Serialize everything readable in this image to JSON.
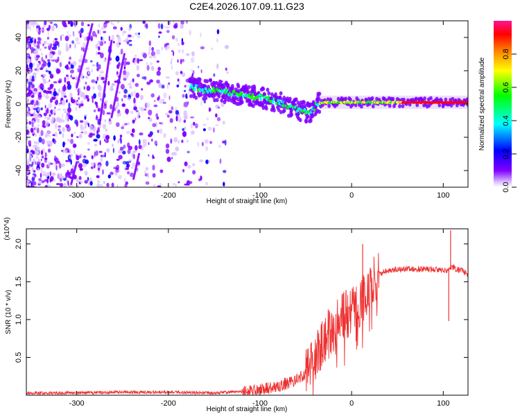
{
  "title": "C2E4.2026.107.09.11.G23",
  "chart_data": [
    {
      "type": "heatmap",
      "xlabel": "Height of straight line (km)",
      "ylabel": "Frequency (Hz)",
      "xlim": [
        -355,
        127
      ],
      "ylim": [
        -50,
        50
      ],
      "xticks": [
        -300,
        -200,
        -100,
        0,
        100
      ],
      "xtick_labels": [
        "-300",
        "-200",
        "-100",
        "0",
        "100"
      ],
      "yticks": [
        -40,
        -20,
        0,
        20,
        40
      ],
      "ytick_labels": [
        "-40",
        "-20",
        "0",
        "20",
        "40"
      ],
      "colorbar": {
        "label": "Normalized spectral amplitude",
        "range": [
          0,
          1
        ],
        "ticks": [
          0.0,
          0.2,
          0.4,
          0.6,
          0.8
        ],
        "tick_labels": [
          "0.0",
          "0.2",
          "0.4",
          "0.6",
          "0.8"
        ],
        "colors": [
          "#ffffff",
          "#dcc3ff",
          "#8000ff",
          "#0000ff",
          "#00ffff",
          "#00ff00",
          "#ffff00",
          "#ff8000",
          "#ff0000",
          "#ff1493"
        ]
      },
      "signal_track": {
        "x": [
          -175,
          -150,
          -125,
          -100,
          -80,
          -60,
          -45,
          -38,
          -30,
          -10,
          0,
          20,
          60,
          100,
          127
        ],
        "y": [
          10,
          8,
          6,
          4,
          1,
          -3,
          -6,
          0,
          1,
          1,
          1,
          1,
          1,
          1,
          1
        ]
      }
    },
    {
      "type": "line",
      "xlabel": "Height of straight line (km)",
      "ylabel": "SNR (10 * v/v)",
      "y_multiplier": "(x10^4)",
      "xlim": [
        -355,
        127
      ],
      "ylim": [
        0,
        2.2
      ],
      "xticks": [
        -300,
        -200,
        -100,
        0,
        100
      ],
      "xtick_labels": [
        "-300",
        "-200",
        "-100",
        "0",
        "100"
      ],
      "yticks": [
        0.5,
        1.0,
        1.5,
        2.0
      ],
      "ytick_labels": [
        "0.5",
        "1.0",
        "1.5",
        "2.0"
      ],
      "color": "#ee3030",
      "series": [
        {
          "name": "SNR",
          "x": [
            -355,
            -300,
            -250,
            -200,
            -150,
            -120,
            -100,
            -80,
            -60,
            -50,
            -40,
            -30,
            -20,
            -10,
            0,
            10,
            20,
            30,
            40,
            50,
            60,
            70,
            80,
            90,
            100,
            105,
            110,
            115,
            120,
            127
          ],
          "values": [
            0.03,
            0.03,
            0.04,
            0.04,
            0.03,
            0.05,
            0.07,
            0.12,
            0.2,
            0.3,
            0.5,
            0.75,
            0.9,
            1.05,
            1.1,
            1.25,
            1.45,
            1.6,
            1.65,
            1.66,
            1.67,
            1.67,
            1.67,
            1.66,
            1.65,
            1.65,
            1.7,
            1.66,
            1.65,
            1.6
          ]
        }
      ],
      "annotations": [
        {
          "x": 12,
          "y": 2.0,
          "text": "spike"
        },
        {
          "x": 108,
          "y": 2.18,
          "text": "spike"
        },
        {
          "x": 106,
          "y": 0.98,
          "text": "dip"
        }
      ]
    }
  ]
}
